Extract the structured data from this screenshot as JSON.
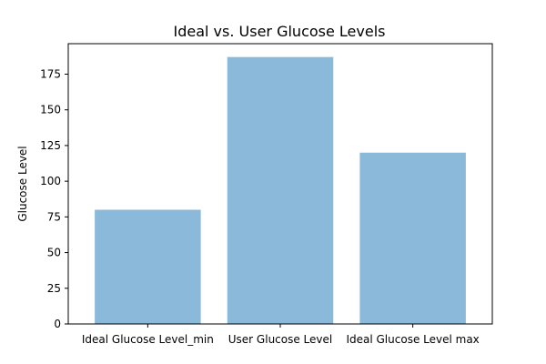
{
  "chart_data": {
    "type": "bar",
    "title": "Ideal vs. User Glucose Levels",
    "xlabel": "",
    "ylabel": "Glucose Level",
    "categories": [
      "Ideal Glucose Level_min",
      "User Glucose Level",
      "Ideal Glucose Level max"
    ],
    "values": [
      80,
      187,
      120
    ],
    "ylim": [
      0,
      196.35
    ],
    "yticks": [
      0,
      25,
      50,
      75,
      100,
      125,
      150,
      175
    ],
    "grid": false,
    "legend": "none",
    "colors": {
      "bar": "#8bb9da",
      "axis": "#000000",
      "background": "#ffffff"
    }
  }
}
